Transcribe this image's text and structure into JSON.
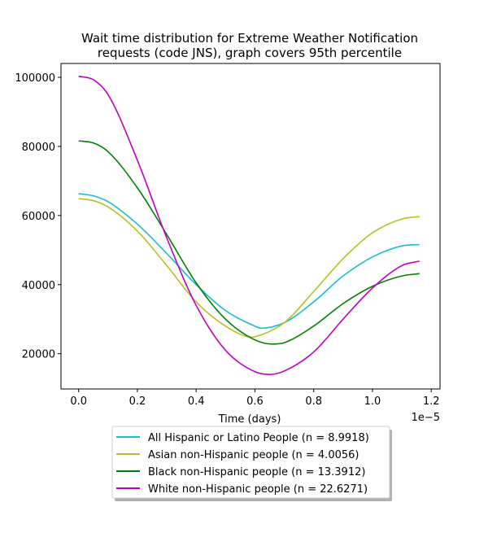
{
  "chart_data": {
    "type": "line",
    "title_lines": [
      "Wait time distribution  for Extreme Weather Notification",
      "requests (code JNS), graph covers 95th percentile"
    ],
    "xlabel": "Time (days)",
    "ylabel": "",
    "x_offset_label": "1e−5",
    "xlim": [
      -6e-07,
      1.23e-05
    ],
    "ylim": [
      9800,
      104000
    ],
    "x_ticks": [
      0,
      2e-06,
      4e-06,
      6e-06,
      8e-06,
      1e-05,
      1.2e-05
    ],
    "x_tick_labels": [
      "0.0",
      "0.2",
      "0.4",
      "0.6",
      "0.8",
      "1.0",
      "1.2"
    ],
    "y_ticks": [
      20000,
      40000,
      60000,
      80000,
      100000
    ],
    "y_tick_labels": [
      "20000",
      "40000",
      "60000",
      "80000",
      "100000"
    ],
    "grid": false,
    "legend_position": "bottom-center",
    "series": [
      {
        "name": "All Hispanic or Latino People (n = 8.9918)",
        "color": "#17becf",
        "x": [
          0,
          5e-07,
          1e-06,
          2e-06,
          3e-06,
          4e-06,
          5e-06,
          6e-06,
          6.2e-06,
          7e-06,
          8e-06,
          9e-06,
          1e-05,
          1.1e-05,
          1.16e-05
        ],
        "values": [
          66300,
          65700,
          64000,
          57500,
          49000,
          40000,
          32500,
          28000,
          27400,
          29000,
          35000,
          42500,
          48000,
          51200,
          51600
        ]
      },
      {
        "name": "Asian non-Hispanic people (n = 4.0056)",
        "color": "#bcbd22",
        "x": [
          0,
          5e-07,
          1e-06,
          2e-06,
          3e-06,
          4e-06,
          5e-06,
          5.9e-06,
          6e-06,
          7e-06,
          8e-06,
          9e-06,
          1e-05,
          1.1e-05,
          1.16e-05
        ],
        "values": [
          64900,
          64300,
          62500,
          55500,
          45500,
          35000,
          28000,
          24800,
          24900,
          29000,
          38000,
          47500,
          55000,
          59000,
          59700
        ]
      },
      {
        "name": "Black non-Hispanic people (n = 13.3912)",
        "color": "#008000",
        "x": [
          0,
          5e-07,
          1e-06,
          2e-06,
          3e-06,
          4e-06,
          5e-06,
          6e-06,
          6.6e-06,
          7e-06,
          8e-06,
          9e-06,
          1e-05,
          1.1e-05,
          1.16e-05
        ],
        "values": [
          81600,
          81000,
          78500,
          68000,
          54500,
          40500,
          30000,
          24000,
          22800,
          23200,
          28000,
          34500,
          39500,
          42500,
          43200
        ]
      },
      {
        "name": "White non-Hispanic people (n = 22.6271)",
        "color": "#bf00bf",
        "x": [
          0,
          5e-07,
          1e-06,
          2e-06,
          3e-06,
          4e-06,
          5e-06,
          6e-06,
          6.5e-06,
          7e-06,
          8e-06,
          9e-06,
          1e-05,
          1.1e-05,
          1.16e-05
        ],
        "values": [
          100300,
          99300,
          95000,
          76000,
          53500,
          34000,
          21000,
          14800,
          14000,
          15000,
          20500,
          30000,
          39000,
          45500,
          46800
        ]
      }
    ]
  }
}
